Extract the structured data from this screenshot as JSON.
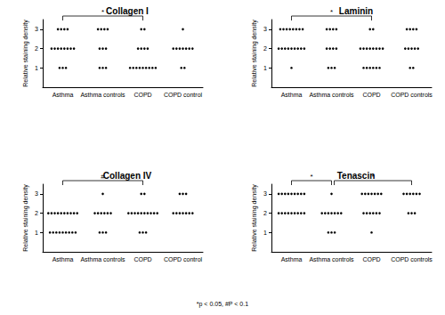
{
  "chart_data": [
    {
      "type": "scatter",
      "title": "Collagen I",
      "ylabel": "Relative staining density",
      "categories": [
        "Asthma",
        "Asthma controls",
        "COPD",
        "COPD control"
      ],
      "values": [
        [
          3,
          3,
          3,
          3,
          2,
          2,
          2,
          2,
          2,
          2,
          2,
          2,
          1,
          1,
          1
        ],
        [
          3,
          3,
          3,
          3,
          2,
          2,
          2,
          1,
          1,
          1
        ],
        [
          3,
          3,
          2,
          2,
          2,
          2,
          1,
          1,
          1,
          1,
          1,
          1,
          1,
          1,
          1
        ],
        [
          3,
          2,
          2,
          2,
          2,
          2,
          2,
          2,
          1,
          1
        ]
      ],
      "color": "#000000",
      "ylim": [
        0,
        3.5
      ],
      "yticks": [
        1,
        2,
        3
      ],
      "grid": false,
      "comparisons": [
        {
          "from": "Asthma",
          "to": "COPD",
          "label": "*"
        }
      ]
    },
    {
      "type": "scatter",
      "title": "Laminin",
      "ylabel": "Relative staining density",
      "categories": [
        "Asthma",
        "Asthma controls",
        "COPD",
        "COPD controls"
      ],
      "values": [
        [
          3,
          3,
          3,
          3,
          3,
          3,
          3,
          3,
          2,
          2,
          2,
          2,
          2,
          2,
          2,
          2,
          2,
          1
        ],
        [
          3,
          3,
          3,
          3,
          2,
          2,
          2,
          2,
          1,
          1,
          1
        ],
        [
          3,
          3,
          2,
          2,
          2,
          2,
          2,
          2,
          2,
          2,
          1,
          1,
          1,
          1,
          1,
          1
        ],
        [
          3,
          3,
          3,
          3,
          2,
          2,
          2,
          2,
          2,
          1,
          1
        ]
      ],
      "color": "#000000",
      "ylim": [
        0,
        3.5
      ],
      "yticks": [
        1,
        2,
        3
      ],
      "grid": false,
      "comparisons": [
        {
          "from": "Asthma",
          "to": "COPD",
          "label": "*"
        }
      ]
    },
    {
      "type": "scatter",
      "title": "Collagen IV",
      "ylabel": "Relative staining density",
      "categories": [
        "Asthma",
        "Asthma controls",
        "COPD",
        "COPD control"
      ],
      "values": [
        [
          2,
          2,
          2,
          2,
          2,
          2,
          2,
          2,
          2,
          2,
          1,
          1,
          1,
          1,
          1,
          1,
          1,
          1,
          1
        ],
        [
          3,
          2,
          2,
          2,
          2,
          2,
          2,
          1,
          1,
          1
        ],
        [
          3,
          3,
          2,
          2,
          2,
          2,
          2,
          2,
          2,
          2,
          2,
          2,
          1,
          1,
          1
        ],
        [
          3,
          3,
          3,
          2,
          2,
          2,
          2,
          2,
          2,
          2
        ]
      ],
      "color": "#000000",
      "ylim": [
        0,
        3.5
      ],
      "yticks": [
        1,
        2,
        3
      ],
      "grid": false,
      "comparisons": [
        {
          "from": "Asthma",
          "to": "COPD",
          "label": "#"
        }
      ]
    },
    {
      "type": "scatter",
      "title": "Tenascin",
      "ylabel": "Relative staining density",
      "categories": [
        "Asthma",
        "Asthma controls",
        "COPD",
        "COPD controls"
      ],
      "values": [
        [
          3,
          3,
          3,
          3,
          3,
          3,
          3,
          3,
          3,
          2,
          2,
          2,
          2,
          2,
          2,
          2,
          2,
          2
        ],
        [
          3,
          2,
          2,
          2,
          2,
          2,
          2,
          2,
          1,
          1,
          1
        ],
        [
          3,
          3,
          3,
          3,
          3,
          3,
          3,
          2,
          2,
          2,
          2,
          2,
          2,
          1
        ],
        [
          3,
          3,
          3,
          3,
          3,
          3,
          2,
          2,
          2
        ]
      ],
      "color": "#000000",
      "ylim": [
        0,
        3.5
      ],
      "yticks": [
        1,
        2,
        3
      ],
      "grid": false,
      "comparisons": [
        {
          "from": "Asthma",
          "to": "Asthma controls",
          "label": "*"
        },
        {
          "from": "Asthma controls",
          "to": "COPD controls",
          "label": "*"
        }
      ]
    }
  ],
  "footnote": "*p < 0.05, #P < 0.1"
}
